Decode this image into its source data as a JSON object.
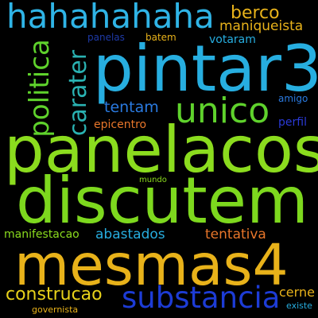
{
  "words": [
    {
      "id": "hahahahaha",
      "text": "hahahahaha",
      "color": "#2fb4e6"
    },
    {
      "id": "pintar3",
      "text": "pintar3",
      "color": "#27aee0"
    },
    {
      "id": "panelacos",
      "text": "panelacos",
      "color": "#8bdc1e"
    },
    {
      "id": "discutem",
      "text": "discutem",
      "color": "#7dd81e"
    },
    {
      "id": "mesmas4",
      "text": "mesmas4",
      "color": "#e8b21a"
    },
    {
      "id": "substancia",
      "text": "substancia",
      "color": "#1d3cd6"
    },
    {
      "id": "unico",
      "text": "unico",
      "color": "#5fd22c"
    },
    {
      "id": "politica",
      "text": "politica",
      "color": "#5fd22c"
    },
    {
      "id": "carater",
      "text": "carater",
      "color": "#2ab2b2"
    },
    {
      "id": "berco",
      "text": "berco",
      "color": "#e8b21a"
    },
    {
      "id": "maniqueista",
      "text": "maniqueista",
      "color": "#e8b21a"
    },
    {
      "id": "tentam",
      "text": "tentam",
      "color": "#2a7ae0"
    },
    {
      "id": "panelas",
      "text": "panelas",
      "color": "#1e3aa8"
    },
    {
      "id": "batem",
      "text": "batem",
      "color": "#e8b21a"
    },
    {
      "id": "votaram",
      "text": "votaram",
      "color": "#27aee0"
    },
    {
      "id": "amigo",
      "text": "amigo",
      "color": "#2a7ae0"
    },
    {
      "id": "epicentro",
      "text": "epicentro",
      "color": "#e8762a"
    },
    {
      "id": "perfil",
      "text": "perfil",
      "color": "#2a3ad6"
    },
    {
      "id": "mundo",
      "text": "mundo",
      "color": "#8bdc1e"
    },
    {
      "id": "manifestacao",
      "text": "manifestacao",
      "color": "#8bdc1e"
    },
    {
      "id": "abastados",
      "text": "abastados",
      "color": "#27aee0"
    },
    {
      "id": "tentativa",
      "text": "tentativa",
      "color": "#e8762a"
    },
    {
      "id": "construcao",
      "text": "construcao",
      "color": "#e8d21a"
    },
    {
      "id": "cerne",
      "text": "cerne",
      "color": "#e8b21a"
    },
    {
      "id": "governista",
      "text": "governista",
      "color": "#e8b21a"
    },
    {
      "id": "existe",
      "text": "existe",
      "color": "#27aee0"
    }
  ]
}
